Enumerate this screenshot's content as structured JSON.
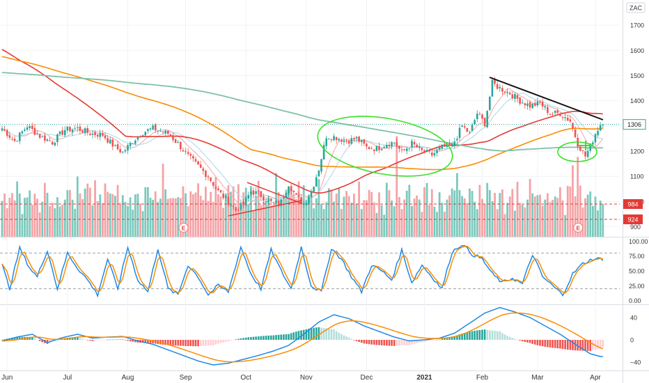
{
  "currency": "ZAC",
  "chart_data": {
    "type": "candlestick",
    "main": {
      "ylim": [
        860,
        1800
      ],
      "y_ticks": [
        900,
        1000,
        1100,
        1200,
        1300,
        1400,
        1500,
        1600,
        1700
      ],
      "last_price": {
        "label": "1306",
        "value": 1306
      },
      "volume_levels": [
        {
          "label": "984",
          "value": 984
        },
        {
          "label": "924",
          "value": 924
        }
      ],
      "earnings": [
        {
          "label": "E",
          "x_index": 73
        },
        {
          "label": "E",
          "x_index": 230
        }
      ]
    },
    "stochastic": {
      "ylim": [
        -5,
        105
      ],
      "y_ticks": [
        {
          "label": "100.00",
          "value": 100
        },
        {
          "label": "75.00",
          "value": 75
        },
        {
          "label": "50.00",
          "value": 50
        },
        {
          "label": "25.00",
          "value": 25
        },
        {
          "label": "0.00",
          "value": 0
        }
      ],
      "levels": [
        80,
        20
      ]
    },
    "macd": {
      "ylim": [
        -55,
        60
      ],
      "y_ticks": [
        {
          "label": "40",
          "value": 40
        },
        {
          "label": "0",
          "value": 0
        },
        {
          "label": "−40",
          "value": -40
        }
      ]
    },
    "x_ticks": [
      {
        "label": "Jun",
        "x_index": 2
      },
      {
        "label": "Jul",
        "x_index": 26
      },
      {
        "label": "Aug",
        "x_index": 50
      },
      {
        "label": "Sep",
        "x_index": 73
      },
      {
        "label": "Oct",
        "x_index": 97
      },
      {
        "label": "Nov",
        "x_index": 121
      },
      {
        "label": "Dec",
        "x_index": 145
      },
      {
        "label": "2021",
        "x_index": 168
      },
      {
        "label": "Feb",
        "x_index": 191
      },
      {
        "label": "Mar",
        "x_index": 213
      },
      {
        "label": "Apr",
        "x_index": 236
      }
    ],
    "price_anchors": [
      [
        0,
        1290
      ],
      [
        5,
        1240
      ],
      [
        10,
        1300
      ],
      [
        15,
        1260
      ],
      [
        20,
        1235
      ],
      [
        25,
        1285
      ],
      [
        30,
        1290
      ],
      [
        35,
        1270
      ],
      [
        40,
        1265
      ],
      [
        45,
        1215
      ],
      [
        48,
        1195
      ],
      [
        52,
        1240
      ],
      [
        56,
        1275
      ],
      [
        60,
        1290
      ],
      [
        63,
        1280
      ],
      [
        66,
        1270
      ],
      [
        70,
        1230
      ],
      [
        74,
        1180
      ],
      [
        78,
        1140
      ],
      [
        82,
        1100
      ],
      [
        86,
        1040
      ],
      [
        90,
        1000
      ],
      [
        93,
        965
      ],
      [
        96,
        990
      ],
      [
        99,
        1040
      ],
      [
        102,
        1030
      ],
      [
        105,
        1010
      ],
      [
        108,
        990
      ],
      [
        111,
        1000
      ],
      [
        114,
        1070
      ],
      [
        117,
        1020
      ],
      [
        120,
        990
      ],
      [
        123,
        1040
      ],
      [
        126,
        1130
      ],
      [
        129,
        1260
      ],
      [
        133,
        1255
      ],
      [
        137,
        1240
      ],
      [
        141,
        1250
      ],
      [
        145,
        1215
      ],
      [
        149,
        1210
      ],
      [
        153,
        1230
      ],
      [
        156,
        1235
      ],
      [
        159,
        1195
      ],
      [
        163,
        1230
      ],
      [
        167,
        1200
      ],
      [
        171,
        1185
      ],
      [
        175,
        1215
      ],
      [
        179,
        1220
      ],
      [
        183,
        1300
      ],
      [
        186,
        1270
      ],
      [
        189,
        1350
      ],
      [
        192,
        1310
      ],
      [
        195,
        1470
      ],
      [
        198,
        1450
      ],
      [
        202,
        1430
      ],
      [
        206,
        1400
      ],
      [
        210,
        1380
      ],
      [
        214,
        1390
      ],
      [
        218,
        1350
      ],
      [
        222,
        1350
      ],
      [
        226,
        1320
      ],
      [
        229,
        1230
      ],
      [
        232,
        1180
      ],
      [
        234,
        1220
      ],
      [
        236,
        1270
      ],
      [
        238,
        1306
      ]
    ],
    "volume_base": 100,
    "volume_pattern": [
      26,
      28,
      24,
      30,
      22,
      20,
      34,
      26,
      18,
      28,
      30,
      24,
      22,
      36,
      26,
      18,
      20,
      28,
      32,
      24,
      26,
      22,
      30,
      20
    ],
    "stoch_anchors": [
      [
        0,
        60
      ],
      [
        3,
        20
      ],
      [
        7,
        88
      ],
      [
        11,
        55
      ],
      [
        14,
        40
      ],
      [
        18,
        85
      ],
      [
        22,
        20
      ],
      [
        26,
        80
      ],
      [
        30,
        55
      ],
      [
        34,
        35
      ],
      [
        38,
        10
      ],
      [
        42,
        70
      ],
      [
        46,
        20
      ],
      [
        50,
        90
      ],
      [
        54,
        35
      ],
      [
        58,
        15
      ],
      [
        62,
        88
      ],
      [
        66,
        20
      ],
      [
        70,
        10
      ],
      [
        74,
        60
      ],
      [
        78,
        40
      ],
      [
        82,
        10
      ],
      [
        86,
        25
      ],
      [
        90,
        15
      ],
      [
        95,
        90
      ],
      [
        99,
        45
      ],
      [
        103,
        20
      ],
      [
        107,
        85
      ],
      [
        111,
        50
      ],
      [
        115,
        20
      ],
      [
        119,
        90
      ],
      [
        123,
        25
      ],
      [
        127,
        15
      ],
      [
        131,
        88
      ],
      [
        135,
        70
      ],
      [
        139,
        40
      ],
      [
        143,
        15
      ],
      [
        147,
        60
      ],
      [
        151,
        50
      ],
      [
        155,
        35
      ],
      [
        159,
        85
      ],
      [
        163,
        30
      ],
      [
        167,
        60
      ],
      [
        171,
        40
      ],
      [
        175,
        20
      ],
      [
        179,
        82
      ],
      [
        183,
        95
      ],
      [
        187,
        78
      ],
      [
        191,
        70
      ],
      [
        195,
        45
      ],
      [
        199,
        30
      ],
      [
        203,
        38
      ],
      [
        207,
        28
      ],
      [
        211,
        78
      ],
      [
        215,
        40
      ],
      [
        219,
        25
      ],
      [
        223,
        10
      ],
      [
        227,
        45
      ],
      [
        231,
        62
      ],
      [
        235,
        70
      ]
    ],
    "macd_anchors": [
      [
        0,
        -2
      ],
      [
        6,
        5
      ],
      [
        12,
        10
      ],
      [
        18,
        -5
      ],
      [
        24,
        4
      ],
      [
        30,
        10
      ],
      [
        36,
        3
      ],
      [
        42,
        5
      ],
      [
        48,
        6
      ],
      [
        54,
        -2
      ],
      [
        60,
        -8
      ],
      [
        66,
        -18
      ],
      [
        72,
        -28
      ],
      [
        78,
        -38
      ],
      [
        84,
        -45
      ],
      [
        90,
        -42
      ],
      [
        96,
        -35
      ],
      [
        102,
        -28
      ],
      [
        108,
        -20
      ],
      [
        114,
        -10
      ],
      [
        120,
        10
      ],
      [
        126,
        32
      ],
      [
        132,
        45
      ],
      [
        138,
        38
      ],
      [
        144,
        25
      ],
      [
        150,
        15
      ],
      [
        156,
        5
      ],
      [
        162,
        -2
      ],
      [
        168,
        0
      ],
      [
        174,
        3
      ],
      [
        180,
        12
      ],
      [
        186,
        30
      ],
      [
        192,
        48
      ],
      [
        198,
        58
      ],
      [
        204,
        50
      ],
      [
        210,
        40
      ],
      [
        216,
        25
      ],
      [
        222,
        10
      ],
      [
        228,
        -8
      ],
      [
        234,
        -25
      ],
      [
        238,
        -30
      ]
    ],
    "ma_periods": {
      "ma10": 10,
      "ma20": 20,
      "ema50": 50,
      "ema100": 100,
      "ma200": 200
    }
  }
}
